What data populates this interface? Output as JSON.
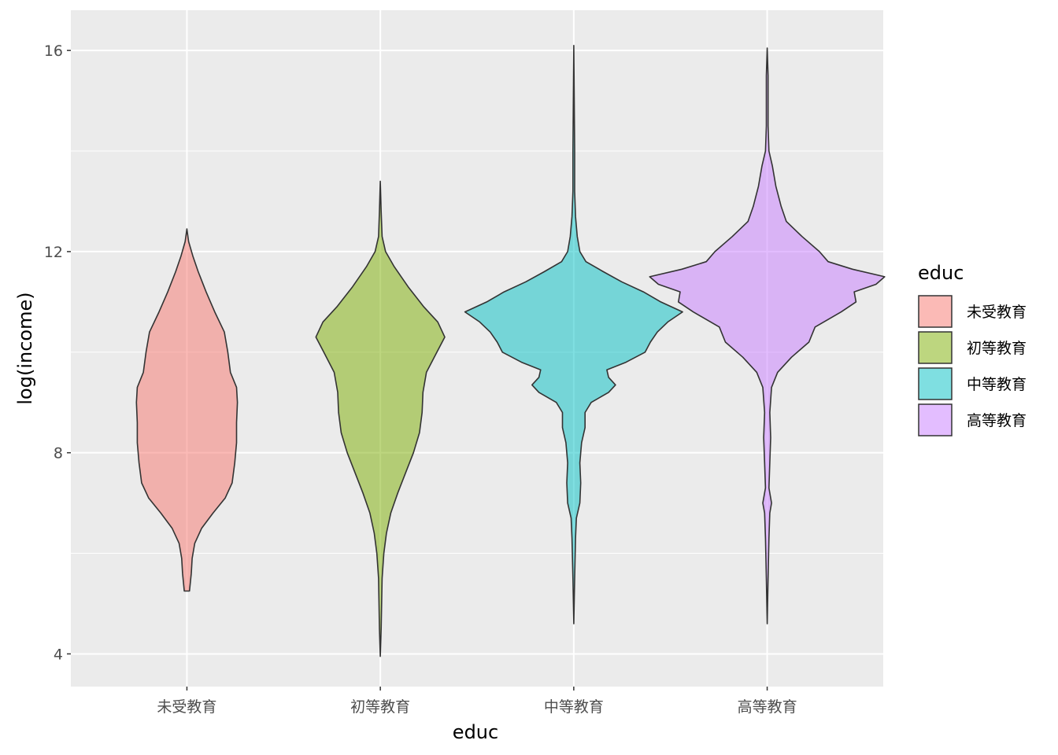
{
  "chart_data": {
    "type": "violin",
    "title": "",
    "xlabel": "educ",
    "ylabel": "log(income)",
    "ylim": [
      3.35,
      16.8
    ],
    "yticks": [
      4,
      8,
      12,
      16
    ],
    "categories": [
      "未受教育",
      "初等教育",
      "中等教育",
      "高等教育"
    ],
    "legend": {
      "title": "educ",
      "position": "right"
    },
    "grid": true,
    "colors": [
      "#F8766D",
      "#7CAE00",
      "#00BFC4",
      "#C77CFF"
    ],
    "fill_alpha": 0.5,
    "series": [
      {
        "name": "未受教育",
        "range": [
          5.25,
          12.45
        ],
        "density": [
          [
            5.25,
            0.03
          ],
          [
            5.6,
            0.05
          ],
          [
            5.9,
            0.06
          ],
          [
            6.2,
            0.09
          ],
          [
            6.5,
            0.17
          ],
          [
            6.8,
            0.3
          ],
          [
            7.1,
            0.44
          ],
          [
            7.4,
            0.52
          ],
          [
            7.8,
            0.55
          ],
          [
            8.2,
            0.57
          ],
          [
            8.6,
            0.57
          ],
          [
            9.0,
            0.58
          ],
          [
            9.3,
            0.57
          ],
          [
            9.6,
            0.5
          ],
          [
            10.0,
            0.47
          ],
          [
            10.4,
            0.43
          ],
          [
            10.8,
            0.32
          ],
          [
            11.2,
            0.22
          ],
          [
            11.6,
            0.13
          ],
          [
            11.9,
            0.07
          ],
          [
            12.2,
            0.02
          ],
          [
            12.45,
            0.0
          ]
        ]
      },
      {
        "name": "初等教育",
        "range": [
          3.95,
          13.4
        ],
        "density": [
          [
            3.95,
            0.0
          ],
          [
            4.5,
            0.01
          ],
          [
            5.5,
            0.02
          ],
          [
            6.0,
            0.04
          ],
          [
            6.4,
            0.07
          ],
          [
            6.8,
            0.12
          ],
          [
            7.2,
            0.2
          ],
          [
            7.6,
            0.29
          ],
          [
            8.0,
            0.38
          ],
          [
            8.4,
            0.45
          ],
          [
            8.8,
            0.48
          ],
          [
            9.2,
            0.49
          ],
          [
            9.6,
            0.53
          ],
          [
            10.0,
            0.65
          ],
          [
            10.3,
            0.74
          ],
          [
            10.6,
            0.66
          ],
          [
            10.9,
            0.5
          ],
          [
            11.3,
            0.32
          ],
          [
            11.7,
            0.16
          ],
          [
            12.0,
            0.06
          ],
          [
            12.3,
            0.02
          ],
          [
            12.8,
            0.01
          ],
          [
            13.4,
            0.0
          ]
        ]
      },
      {
        "name": "中等教育",
        "range": [
          4.6,
          16.1
        ],
        "density": [
          [
            4.6,
            0.0
          ],
          [
            5.5,
            0.01
          ],
          [
            6.3,
            0.02
          ],
          [
            6.7,
            0.03
          ],
          [
            7.0,
            0.07
          ],
          [
            7.4,
            0.08
          ],
          [
            7.8,
            0.07
          ],
          [
            8.2,
            0.09
          ],
          [
            8.5,
            0.13
          ],
          [
            8.8,
            0.13
          ],
          [
            9.0,
            0.2
          ],
          [
            9.2,
            0.4
          ],
          [
            9.35,
            0.48
          ],
          [
            9.5,
            0.4
          ],
          [
            9.65,
            0.38
          ],
          [
            9.8,
            0.6
          ],
          [
            10.0,
            0.82
          ],
          [
            10.2,
            0.88
          ],
          [
            10.4,
            0.96
          ],
          [
            10.6,
            1.08
          ],
          [
            10.8,
            1.25
          ],
          [
            11.0,
            1.0
          ],
          [
            11.2,
            0.8
          ],
          [
            11.4,
            0.55
          ],
          [
            11.6,
            0.34
          ],
          [
            11.8,
            0.14
          ],
          [
            12.0,
            0.07
          ],
          [
            12.3,
            0.04
          ],
          [
            12.7,
            0.02
          ],
          [
            13.2,
            0.01
          ],
          [
            14.0,
            0.01
          ],
          [
            16.1,
            0.0
          ]
        ]
      },
      {
        "name": "高等教育",
        "range": [
          4.6,
          16.05
        ],
        "density": [
          [
            4.6,
            0.0
          ],
          [
            5.5,
            0.01
          ],
          [
            6.3,
            0.02
          ],
          [
            6.8,
            0.03
          ],
          [
            7.0,
            0.05
          ],
          [
            7.3,
            0.02
          ],
          [
            7.8,
            0.03
          ],
          [
            8.3,
            0.04
          ],
          [
            8.8,
            0.03
          ],
          [
            9.3,
            0.05
          ],
          [
            9.6,
            0.12
          ],
          [
            9.9,
            0.28
          ],
          [
            10.2,
            0.48
          ],
          [
            10.5,
            0.55
          ],
          [
            10.8,
            0.85
          ],
          [
            11.0,
            1.02
          ],
          [
            11.2,
            1.0
          ],
          [
            11.35,
            1.25
          ],
          [
            11.5,
            1.35
          ],
          [
            11.65,
            0.98
          ],
          [
            11.8,
            0.7
          ],
          [
            12.0,
            0.6
          ],
          [
            12.3,
            0.4
          ],
          [
            12.6,
            0.22
          ],
          [
            12.9,
            0.16
          ],
          [
            13.3,
            0.1
          ],
          [
            13.7,
            0.06
          ],
          [
            14.0,
            0.02
          ],
          [
            14.5,
            0.01
          ],
          [
            15.5,
            0.01
          ],
          [
            16.05,
            0.0
          ]
        ]
      }
    ]
  }
}
